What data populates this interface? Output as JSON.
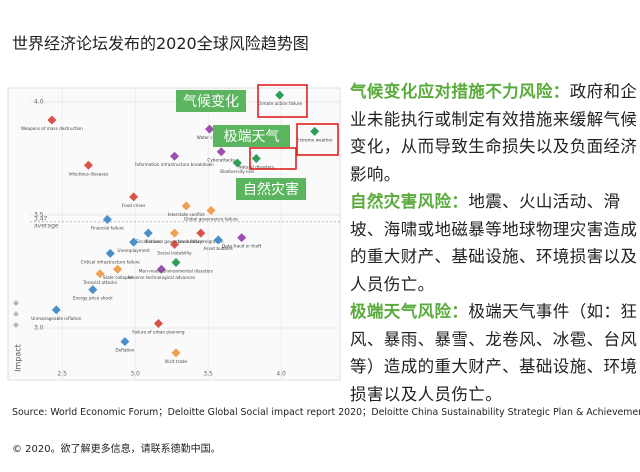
{
  "title": "世界经济论坛发布的2020全球风险趋势图",
  "chart_data": {
    "type": "scatter",
    "ylabel": "Impact",
    "xlim": [
      2.28,
      4.4
    ],
    "ylim": [
      2.77,
      4.06
    ],
    "xticks": [
      2.5,
      {
        "value": 3,
        "label": "3.0"
      },
      3.5,
      {
        "value": 4,
        "label": "4.0"
      }
    ],
    "yticks": [
      {
        "value": 3,
        "label": "3.0"
      },
      3.5,
      {
        "value": 4,
        "label": "4.0"
      }
    ],
    "average": {
      "value": 3.47,
      "label": "3.47",
      "text": "average"
    },
    "grid": true,
    "points": [
      {
        "label": "Weapons of mass destruction",
        "x": 2.43,
        "y": 3.92,
        "color": "#d8544a"
      },
      {
        "label": "Climate action failure",
        "x": 3.99,
        "y": 4.03,
        "color": "#2e9e5b"
      },
      {
        "label": "Extreme weather",
        "x": 4.23,
        "y": 3.87,
        "color": "#2e9e5b"
      },
      {
        "label": "Natural disasters",
        "x": 3.83,
        "y": 3.75,
        "color": "#2e9e5b"
      },
      {
        "label": "Biodiversity loss",
        "x": 3.7,
        "y": 3.73,
        "color": "#2e9e5b"
      },
      {
        "label": "Water crises",
        "x": 3.51,
        "y": 3.88,
        "color": "#9b4fb0"
      },
      {
        "label": "Cyberattacks",
        "x": 3.59,
        "y": 3.78,
        "color": "#9b4fb0"
      },
      {
        "label": "Information infrastructure breakdown",
        "x": 3.27,
        "y": 3.76,
        "color": "#9b4fb0"
      },
      {
        "label": "Infectious diseases",
        "x": 2.68,
        "y": 3.72,
        "color": "#d8544a"
      },
      {
        "label": "Food crises",
        "x": 2.99,
        "y": 3.58,
        "color": "#d8544a"
      },
      {
        "label": "Interstate conflict",
        "x": 3.35,
        "y": 3.54,
        "color": "#f0a050"
      },
      {
        "label": "Global governance failure",
        "x": 3.52,
        "y": 3.52,
        "color": "#f0a050"
      },
      {
        "label": "Financial failure",
        "x": 2.81,
        "y": 3.48,
        "color": "#4a8fc8"
      },
      {
        "label": "Fiscal crises",
        "x": 3.09,
        "y": 3.42,
        "color": "#4a8fc8"
      },
      {
        "label": "Unemployment",
        "x": 2.99,
        "y": 3.38,
        "color": "#4a8fc8"
      },
      {
        "label": "Social instability",
        "x": 3.27,
        "y": 3.37,
        "color": "#d8544a"
      },
      {
        "label": "Involuntary migration",
        "x": 3.45,
        "y": 3.42,
        "color": "#d8544a"
      },
      {
        "label": "Asset bubbles",
        "x": 3.57,
        "y": 3.39,
        "color": "#4a8fc8"
      },
      {
        "label": "Data fraud or theft",
        "x": 3.73,
        "y": 3.4,
        "color": "#9b4fb0"
      },
      {
        "label": "National governance failure",
        "x": 3.27,
        "y": 3.42,
        "color": "#f0a050"
      },
      {
        "label": "Critical infrastructure failure",
        "x": 2.83,
        "y": 3.33,
        "color": "#4a8fc8"
      },
      {
        "label": "State collapse",
        "x": 2.88,
        "y": 3.26,
        "color": "#f0a050"
      },
      {
        "label": "Terrorist attacks",
        "x": 2.76,
        "y": 3.24,
        "color": "#f0a050"
      },
      {
        "label": "Adverse technological advances",
        "x": 3.18,
        "y": 3.26,
        "color": "#9b4fb0"
      },
      {
        "label": "Man-made environmental disasters",
        "x": 3.28,
        "y": 3.29,
        "color": "#2e9e5b"
      },
      {
        "label": "Energy price shock",
        "x": 2.71,
        "y": 3.17,
        "color": "#4a8fc8"
      },
      {
        "label": "Unmanageable inflation",
        "x": 2.46,
        "y": 3.08,
        "color": "#4a8fc8"
      },
      {
        "label": "Failure of urban planning",
        "x": 3.16,
        "y": 3.02,
        "color": "#d8544a"
      },
      {
        "label": "Deflation",
        "x": 2.93,
        "y": 2.94,
        "color": "#4a8fc8"
      },
      {
        "label": "Illicit trade",
        "x": 3.28,
        "y": 2.89,
        "color": "#f0a050"
      }
    ],
    "annotations": [
      {
        "text": "气候变化",
        "color": "#5bb55e"
      },
      {
        "text": "极端天气",
        "color": "#5bb55e"
      },
      {
        "text": "自然灾害",
        "color": "#5bb55e"
      }
    ]
  },
  "paragraphs": [
    {
      "head": "气候变化应对措施不力风险：",
      "body": "政府和企业未能执行或制定有效措施来缓解气候变化，从而导致生命损失以及负面经济影响。"
    },
    {
      "head": "自然灾害风险：",
      "body": "地震、火山活动、滑坡、海啸或地磁暴等地球物理灾害造成的重大财产、基础设施、环境损害以及人员伤亡。"
    },
    {
      "head": "极端天气风险：",
      "body": "极端天气事件（如：狂风、暴雨、暴雪、龙卷风、冰雹、台风等）造成的重大财产、基础设施、环境损害以及人员伤亡。"
    }
  ],
  "source": "Source: World Economic Forum；Deloitte Global Social impact report 2020；Deloitte China Sustainability Strategic Plan & Achievement",
  "footer": "© 2020。欲了解更多信息，请联系德勤中国。"
}
